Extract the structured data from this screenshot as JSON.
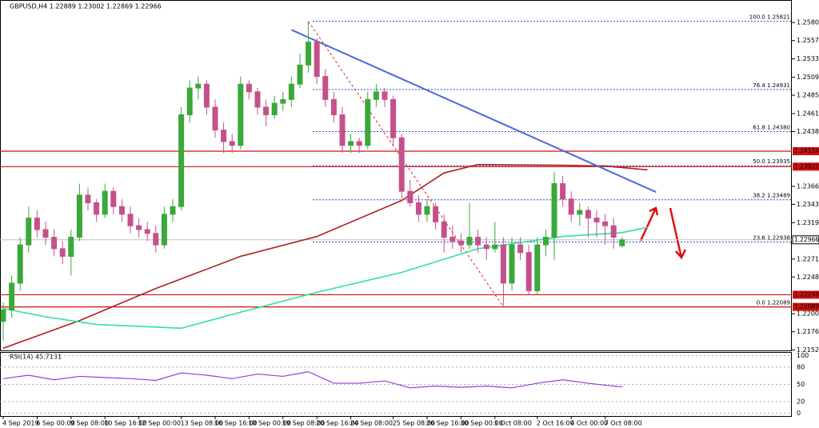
{
  "chart_data": [
    {
      "type": "candlestick",
      "title": "GBPUSD,H4 1.22889 1.23002 1.22869 1.22966",
      "categories": [
        "4 Sep 2019",
        null,
        null,
        null,
        "6 Sep 00:00",
        null,
        null,
        null,
        "9 Sep 08:00",
        null,
        null,
        null,
        "10 Sep 16:00",
        null,
        null,
        null,
        "12 Sep 00:00",
        null,
        null,
        null,
        null,
        "13 Sep 08:00",
        null,
        null,
        null,
        "16 Sep 16:00",
        null,
        null,
        null,
        "18 Sep 00:00",
        null,
        null,
        null,
        "19 Sep 08:00",
        null,
        null,
        null,
        "20 Sep 16:00",
        null,
        null,
        null,
        "24 Sep 08:00",
        null,
        null,
        null,
        null,
        "25 Sep 08:00",
        null,
        null,
        null,
        "26 Sep 16:00",
        null,
        null,
        null,
        "30 Sep 00:00",
        null,
        null,
        null,
        "1 Oct 08:00",
        null,
        null,
        null,
        null,
        "2 Oct 16:00",
        null,
        null,
        null,
        "4 Oct 00:00",
        null,
        null,
        null,
        "7 Oct 08:00",
        null,
        null
      ],
      "candles": [
        [
          1.219,
          1.2215,
          1.2165,
          1.2205
        ],
        [
          1.2205,
          1.225,
          1.2195,
          1.224
        ],
        [
          1.224,
          1.23,
          1.223,
          1.229
        ],
        [
          1.229,
          1.234,
          1.228,
          1.2325
        ],
        [
          1.2325,
          1.2335,
          1.23,
          1.231
        ],
        [
          1.231,
          1.232,
          1.229,
          1.23
        ],
        [
          1.23,
          1.231,
          1.2275,
          1.2285
        ],
        [
          1.2285,
          1.2295,
          1.2265,
          1.2275
        ],
        [
          1.2275,
          1.231,
          1.225,
          1.23
        ],
        [
          1.23,
          1.237,
          1.2295,
          1.2355
        ],
        [
          1.2355,
          1.2365,
          1.2335,
          1.2345
        ],
        [
          1.2345,
          1.235,
          1.232,
          1.233
        ],
        [
          1.233,
          1.237,
          1.2325,
          1.236
        ],
        [
          1.236,
          1.2365,
          1.233,
          1.234
        ],
        [
          1.234,
          1.235,
          1.232,
          1.233
        ],
        [
          1.233,
          1.234,
          1.2305,
          1.2315
        ],
        [
          1.2315,
          1.2325,
          1.23,
          1.231
        ],
        [
          1.231,
          1.232,
          1.2295,
          1.2305
        ],
        [
          1.2305,
          1.2315,
          1.228,
          1.229
        ],
        [
          1.229,
          1.234,
          1.2285,
          1.233
        ],
        [
          1.233,
          1.235,
          1.232,
          1.234
        ],
        [
          1.234,
          1.247,
          1.2335,
          1.246
        ],
        [
          1.246,
          1.2505,
          1.245,
          1.2495
        ],
        [
          1.2495,
          1.251,
          1.248,
          1.25
        ],
        [
          1.25,
          1.2505,
          1.246,
          1.247
        ],
        [
          1.247,
          1.248,
          1.243,
          1.244
        ],
        [
          1.244,
          1.245,
          1.241,
          1.2425
        ],
        [
          1.2425,
          1.2435,
          1.241,
          1.242
        ],
        [
          1.242,
          1.251,
          1.2415,
          1.25
        ],
        [
          1.25,
          1.2505,
          1.248,
          1.249
        ],
        [
          1.249,
          1.2495,
          1.246,
          1.247
        ],
        [
          1.247,
          1.248,
          1.2445,
          1.246
        ],
        [
          1.246,
          1.2485,
          1.2455,
          1.2475
        ],
        [
          1.2475,
          1.249,
          1.2465,
          1.248
        ],
        [
          1.248,
          1.251,
          1.247,
          1.25
        ],
        [
          1.25,
          1.254,
          1.2495,
          1.2525
        ],
        [
          1.2525,
          1.25821,
          1.2515,
          1.2555
        ],
        [
          1.2555,
          1.256,
          1.25,
          1.251
        ],
        [
          1.251,
          1.252,
          1.247,
          1.248
        ],
        [
          1.248,
          1.249,
          1.245,
          1.246
        ],
        [
          1.246,
          1.247,
          1.241,
          1.242
        ],
        [
          1.242,
          1.2435,
          1.241,
          1.2425
        ],
        [
          1.2425,
          1.243,
          1.241,
          1.242
        ],
        [
          1.242,
          1.249,
          1.2415,
          1.248
        ],
        [
          1.248,
          1.25,
          1.247,
          1.249
        ],
        [
          1.249,
          1.2495,
          1.247,
          1.248
        ],
        [
          1.248,
          1.2485,
          1.242,
          1.243
        ],
        [
          1.243,
          1.2435,
          1.235,
          1.236
        ],
        [
          1.236,
          1.2375,
          1.234,
          1.2345
        ],
        [
          1.2345,
          1.2355,
          1.232,
          1.233
        ],
        [
          1.233,
          1.235,
          1.232,
          1.234
        ],
        [
          1.234,
          1.2345,
          1.231,
          1.232
        ],
        [
          1.232,
          1.233,
          1.228,
          1.23
        ],
        [
          1.23,
          1.2315,
          1.2285,
          1.2295
        ],
        [
          1.2295,
          1.2305,
          1.228,
          1.229
        ],
        [
          1.229,
          1.2345,
          1.2285,
          1.23
        ],
        [
          1.23,
          1.231,
          1.228,
          1.229
        ],
        [
          1.229,
          1.23,
          1.227,
          1.2285
        ],
        [
          1.2285,
          1.232,
          1.228,
          1.229
        ],
        [
          1.229,
          1.23,
          1.22089,
          1.224
        ],
        [
          1.224,
          1.23,
          1.223,
          1.229
        ],
        [
          1.229,
          1.23,
          1.227,
          1.228
        ],
        [
          1.228,
          1.229,
          1.2225,
          1.223
        ],
        [
          1.223,
          1.23,
          1.2225,
          1.229
        ],
        [
          1.229,
          1.231,
          1.2275,
          1.23
        ],
        [
          1.23,
          1.2385,
          1.227,
          1.237
        ],
        [
          1.237,
          1.238,
          1.234,
          1.235
        ],
        [
          1.235,
          1.236,
          1.232,
          1.233
        ],
        [
          1.233,
          1.2345,
          1.2315,
          1.2335
        ],
        [
          1.2335,
          1.234,
          1.23,
          1.2325
        ],
        [
          1.2325,
          1.2335,
          1.23,
          1.232
        ],
        [
          1.232,
          1.233,
          1.229,
          1.2315
        ],
        [
          1.2315,
          1.2325,
          1.2285,
          1.23
        ],
        [
          1.22889,
          1.23002,
          1.22869,
          1.22966
        ]
      ],
      "up_color": "#3aa83a",
      "down_color": "#c4508c",
      "ylim": [
        1.215,
        1.261
      ],
      "yticks": [
        1.25805,
        {
          "value": 1.2557,
          "label": "1.25570"
        },
        {
          "value": 1.2533,
          "label": "1.25330"
        },
        {
          "value": 1.2509,
          "label": "1.25090"
        },
        1.24855,
        1.24615,
        {
          "value": 1.2438,
          "label": "1.24380"
        },
        1.23665,
        {
          "value": 1.2343,
          "label": "1.23430"
        },
        {
          "value": 1.2319,
          "label": "1.23190"
        },
        1.22715,
        {
          "value": 1.2248,
          "label": "1.22480"
        },
        {
          "value": 1.22,
          "label": "1.22000"
        },
        1.21765,
        1.21525
      ],
      "series": [
        {
          "color": "#b02020",
          "x": [
            0,
            9,
            18,
            28,
            37,
            47,
            52,
            56,
            66,
            71,
            76
          ],
          "values": [
            1.2155,
            1.2191,
            1.2233,
            1.2275,
            1.2301,
            1.2348,
            1.2384,
            1.2395,
            1.2394,
            1.2393,
            1.2388
          ]
        },
        {
          "color": "#30e0a0",
          "x": [
            0,
            5,
            11,
            21,
            28,
            37,
            47,
            56,
            66,
            73,
            76
          ],
          "values": [
            1.2207,
            1.2196,
            1.2186,
            1.2181,
            1.2202,
            1.2228,
            1.2254,
            1.2285,
            1.2301,
            1.2306,
            1.2313
          ]
        },
        {
          "color": "#4a68d8",
          "x": [
            34,
            77
          ],
          "values": [
            1.2571,
            1.2359
          ]
        }
      ],
      "levels": [
        1.24124,
        1.23922,
        1.22248,
        1.22089
      ],
      "level_color": "#d01010",
      "last_price": 1.22966,
      "fib_color": "#3040c0",
      "fib_levels": [
        {
          "value": 1.25821,
          "label": "100.0 1.25821"
        },
        {
          "value": 1.24931,
          "label": "76.4 1.24931"
        },
        {
          "value": 1.2438,
          "label": "61.8 1.24380"
        },
        {
          "value": 1.23935,
          "label": "50.0 1.23935"
        },
        {
          "value": 1.23489,
          "label": "38.2 1.23489"
        },
        {
          "value": 1.22938,
          "label": "23.6 1.22938"
        },
        {
          "value": 1.22089,
          "label": "0.0 1.22089"
        }
      ]
    },
    {
      "type": "line",
      "title": "RSI(14) 45.7131",
      "color": "#9040d8",
      "x": [
        0,
        3,
        6,
        9,
        12,
        15,
        18,
        21,
        24,
        27,
        30,
        33,
        36,
        39,
        42,
        45,
        48,
        51,
        54,
        57,
        60,
        63,
        66,
        69,
        72,
        73
      ],
      "values": [
        60,
        66,
        58,
        64,
        62,
        60,
        57,
        70,
        66,
        60,
        68,
        64,
        72,
        52,
        52,
        56,
        44,
        47,
        45,
        47,
        44,
        52,
        58,
        52,
        47,
        45.7131
      ],
      "ylim": [
        -5,
        105
      ],
      "yticks": [
        0,
        20,
        50,
        80,
        100
      ],
      "grid": true
    }
  ]
}
